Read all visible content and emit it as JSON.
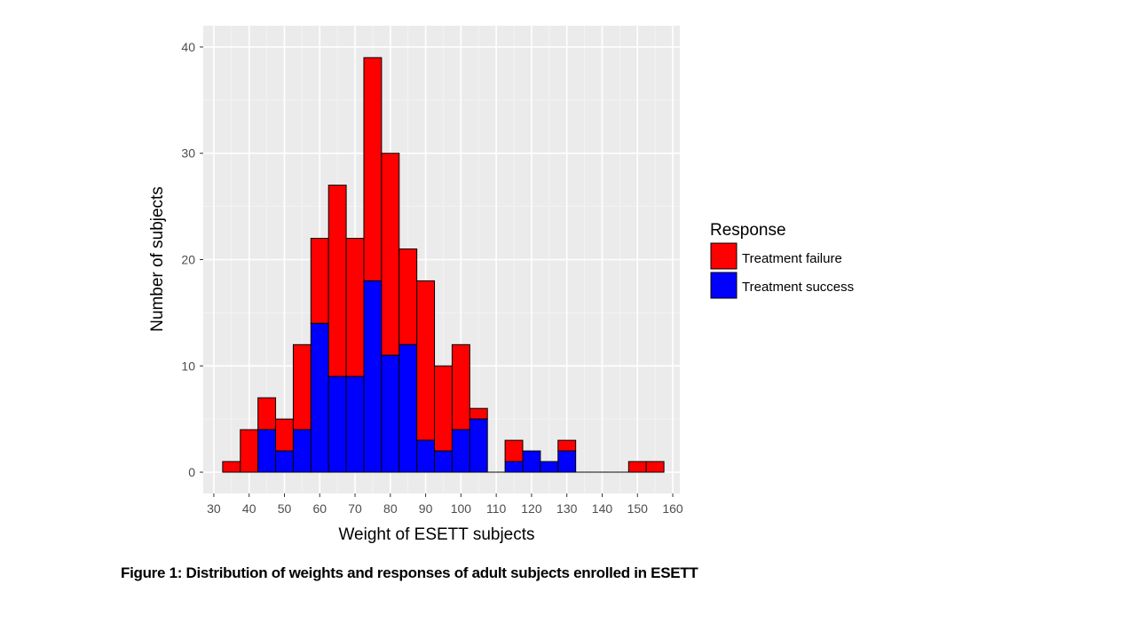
{
  "chart_data": {
    "type": "bar",
    "stacked": true,
    "xlabel": "Weight of ESETT subjects",
    "ylabel": "Number of subjects",
    "xlim": [
      27,
      162
    ],
    "ylim": [
      -2,
      42
    ],
    "x_ticks": [
      30,
      40,
      50,
      60,
      70,
      80,
      90,
      100,
      110,
      120,
      130,
      140,
      150,
      160
    ],
    "y_ticks": [
      0,
      10,
      20,
      30,
      40
    ],
    "bin_width": 5,
    "bin_centers": [
      35,
      40,
      45,
      50,
      55,
      60,
      65,
      70,
      75,
      80,
      85,
      90,
      95,
      100,
      105,
      110,
      115,
      120,
      125,
      130,
      135,
      140,
      145,
      150,
      155
    ],
    "series": [
      {
        "name": "Treatment success",
        "color": "#0000ff",
        "values": [
          0,
          0,
          4,
          2,
          4,
          14,
          9,
          9,
          18,
          11,
          12,
          3,
          2,
          4,
          5,
          0,
          1,
          2,
          1,
          2,
          0,
          0,
          0,
          0,
          0
        ]
      },
      {
        "name": "Treatment failure",
        "color": "#ff0000",
        "values": [
          1,
          4,
          3,
          3,
          8,
          8,
          18,
          13,
          21,
          19,
          9,
          15,
          8,
          8,
          1,
          0,
          2,
          0,
          0,
          1,
          0,
          0,
          0,
          1,
          1
        ]
      }
    ],
    "legend": {
      "title": "Response",
      "position": "right"
    },
    "grid": true,
    "background": "#ebebeb"
  },
  "figure": {
    "caption": "Figure 1: Distribution of weights and responses of adult subjects enrolled in ESETT"
  }
}
